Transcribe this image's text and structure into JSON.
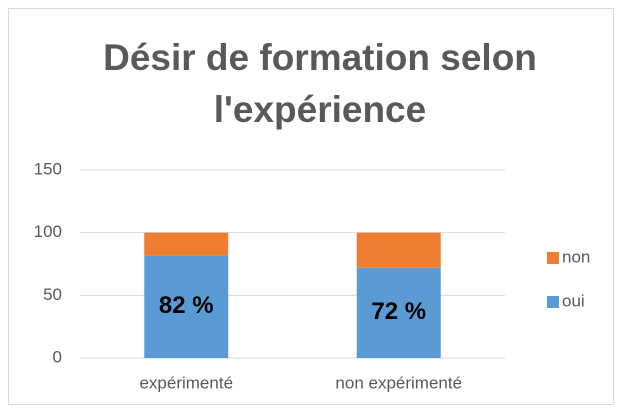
{
  "chart_data": {
    "type": "stacked_bar",
    "title": "Désir de formation selon l'expérience",
    "categories": [
      "expérimenté",
      "non expérimenté"
    ],
    "series": [
      {
        "name": "oui",
        "color": "#5b9bd5",
        "values": [
          82,
          72
        ],
        "value_labels": [
          "82 %",
          "72 %"
        ]
      },
      {
        "name": "non",
        "color": "#ed7d31",
        "values": [
          18,
          28
        ]
      }
    ],
    "ylim": [
      0,
      150
    ],
    "yticks": [
      0,
      50,
      100,
      150
    ],
    "grid": true,
    "legend": "right"
  }
}
